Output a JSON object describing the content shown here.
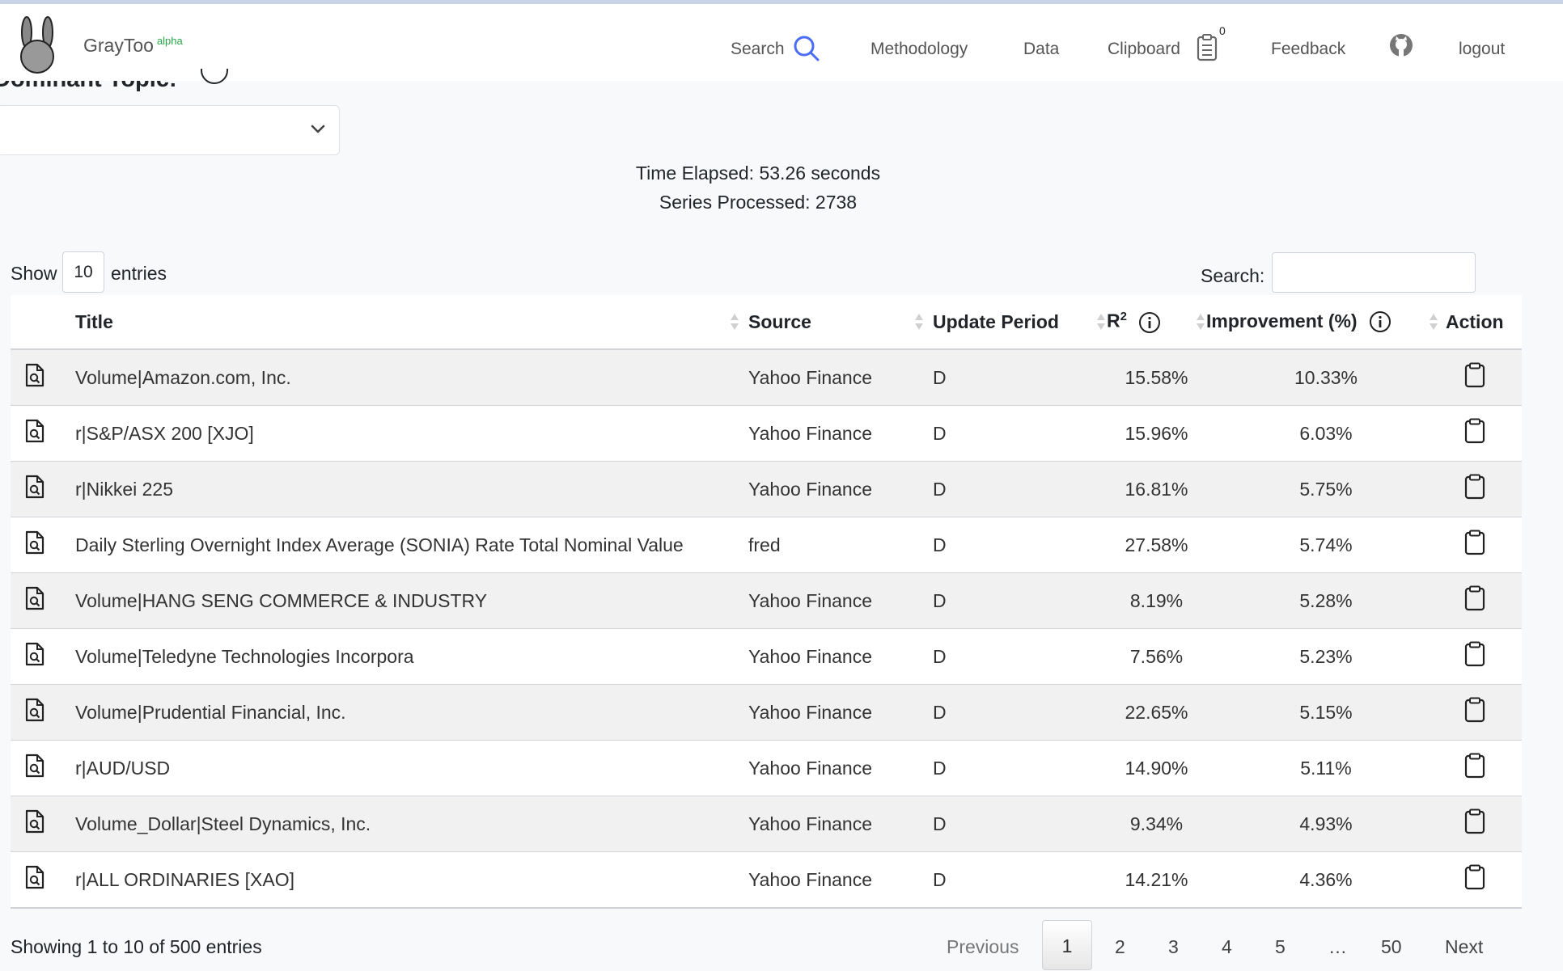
{
  "nav": {
    "brand": "GrayToo",
    "brand_sup": "alpha",
    "search": "Search",
    "methodology": "Methodology",
    "data": "Data",
    "clipboard": "Clipboard",
    "clipboard_count": "0",
    "feedback": "Feedback",
    "logout": "logout"
  },
  "filter": {
    "dominant_topic_label": "Dominant Topic:",
    "dominant_topic_value": ""
  },
  "stats": {
    "time_elapsed": "Time Elapsed: 53.26 seconds",
    "series_processed": "Series Processed: 2738"
  },
  "table_controls": {
    "show": "Show",
    "entries_value": "10",
    "entries": "entries",
    "search_label": "Search:"
  },
  "table": {
    "headers": {
      "title": "Title",
      "source": "Source",
      "update_period": "Update Period",
      "r2": "R",
      "r2_sup": "2",
      "improvement": "Improvement (%)",
      "action": "Action"
    },
    "rows": [
      {
        "title": "Volume|Amazon.com, Inc.",
        "source": "Yahoo Finance",
        "period": "D",
        "r2": "15.58%",
        "improvement": "10.33%"
      },
      {
        "title": "r|S&P/ASX 200 [XJO]",
        "source": "Yahoo Finance",
        "period": "D",
        "r2": "15.96%",
        "improvement": "6.03%"
      },
      {
        "title": "r|Nikkei 225",
        "source": "Yahoo Finance",
        "period": "D",
        "r2": "16.81%",
        "improvement": "5.75%"
      },
      {
        "title": "Daily Sterling Overnight Index Average (SONIA) Rate Total Nominal Value",
        "source": "fred",
        "period": "D",
        "r2": "27.58%",
        "improvement": "5.74%"
      },
      {
        "title": "Volume|HANG SENG COMMERCE & INDUSTRY",
        "source": "Yahoo Finance",
        "period": "D",
        "r2": "8.19%",
        "improvement": "5.28%"
      },
      {
        "title": "Volume|Teledyne Technologies Incorpora",
        "source": "Yahoo Finance",
        "period": "D",
        "r2": "7.56%",
        "improvement": "5.23%"
      },
      {
        "title": "Volume|Prudential Financial, Inc.",
        "source": "Yahoo Finance",
        "period": "D",
        "r2": "22.65%",
        "improvement": "5.15%"
      },
      {
        "title": "r|AUD/USD",
        "source": "Yahoo Finance",
        "period": "D",
        "r2": "14.90%",
        "improvement": "5.11%"
      },
      {
        "title": "Volume_Dollar|Steel Dynamics, Inc.",
        "source": "Yahoo Finance",
        "period": "D",
        "r2": "9.34%",
        "improvement": "4.93%"
      },
      {
        "title": "r|ALL ORDINARIES [XAO]",
        "source": "Yahoo Finance",
        "period": "D",
        "r2": "14.21%",
        "improvement": "4.36%"
      }
    ]
  },
  "footer": {
    "showing": "Showing 1 to 10 of 500 entries",
    "previous": "Previous",
    "pages": [
      "1",
      "2",
      "3",
      "4",
      "5",
      "…",
      "50"
    ],
    "next": "Next"
  }
}
